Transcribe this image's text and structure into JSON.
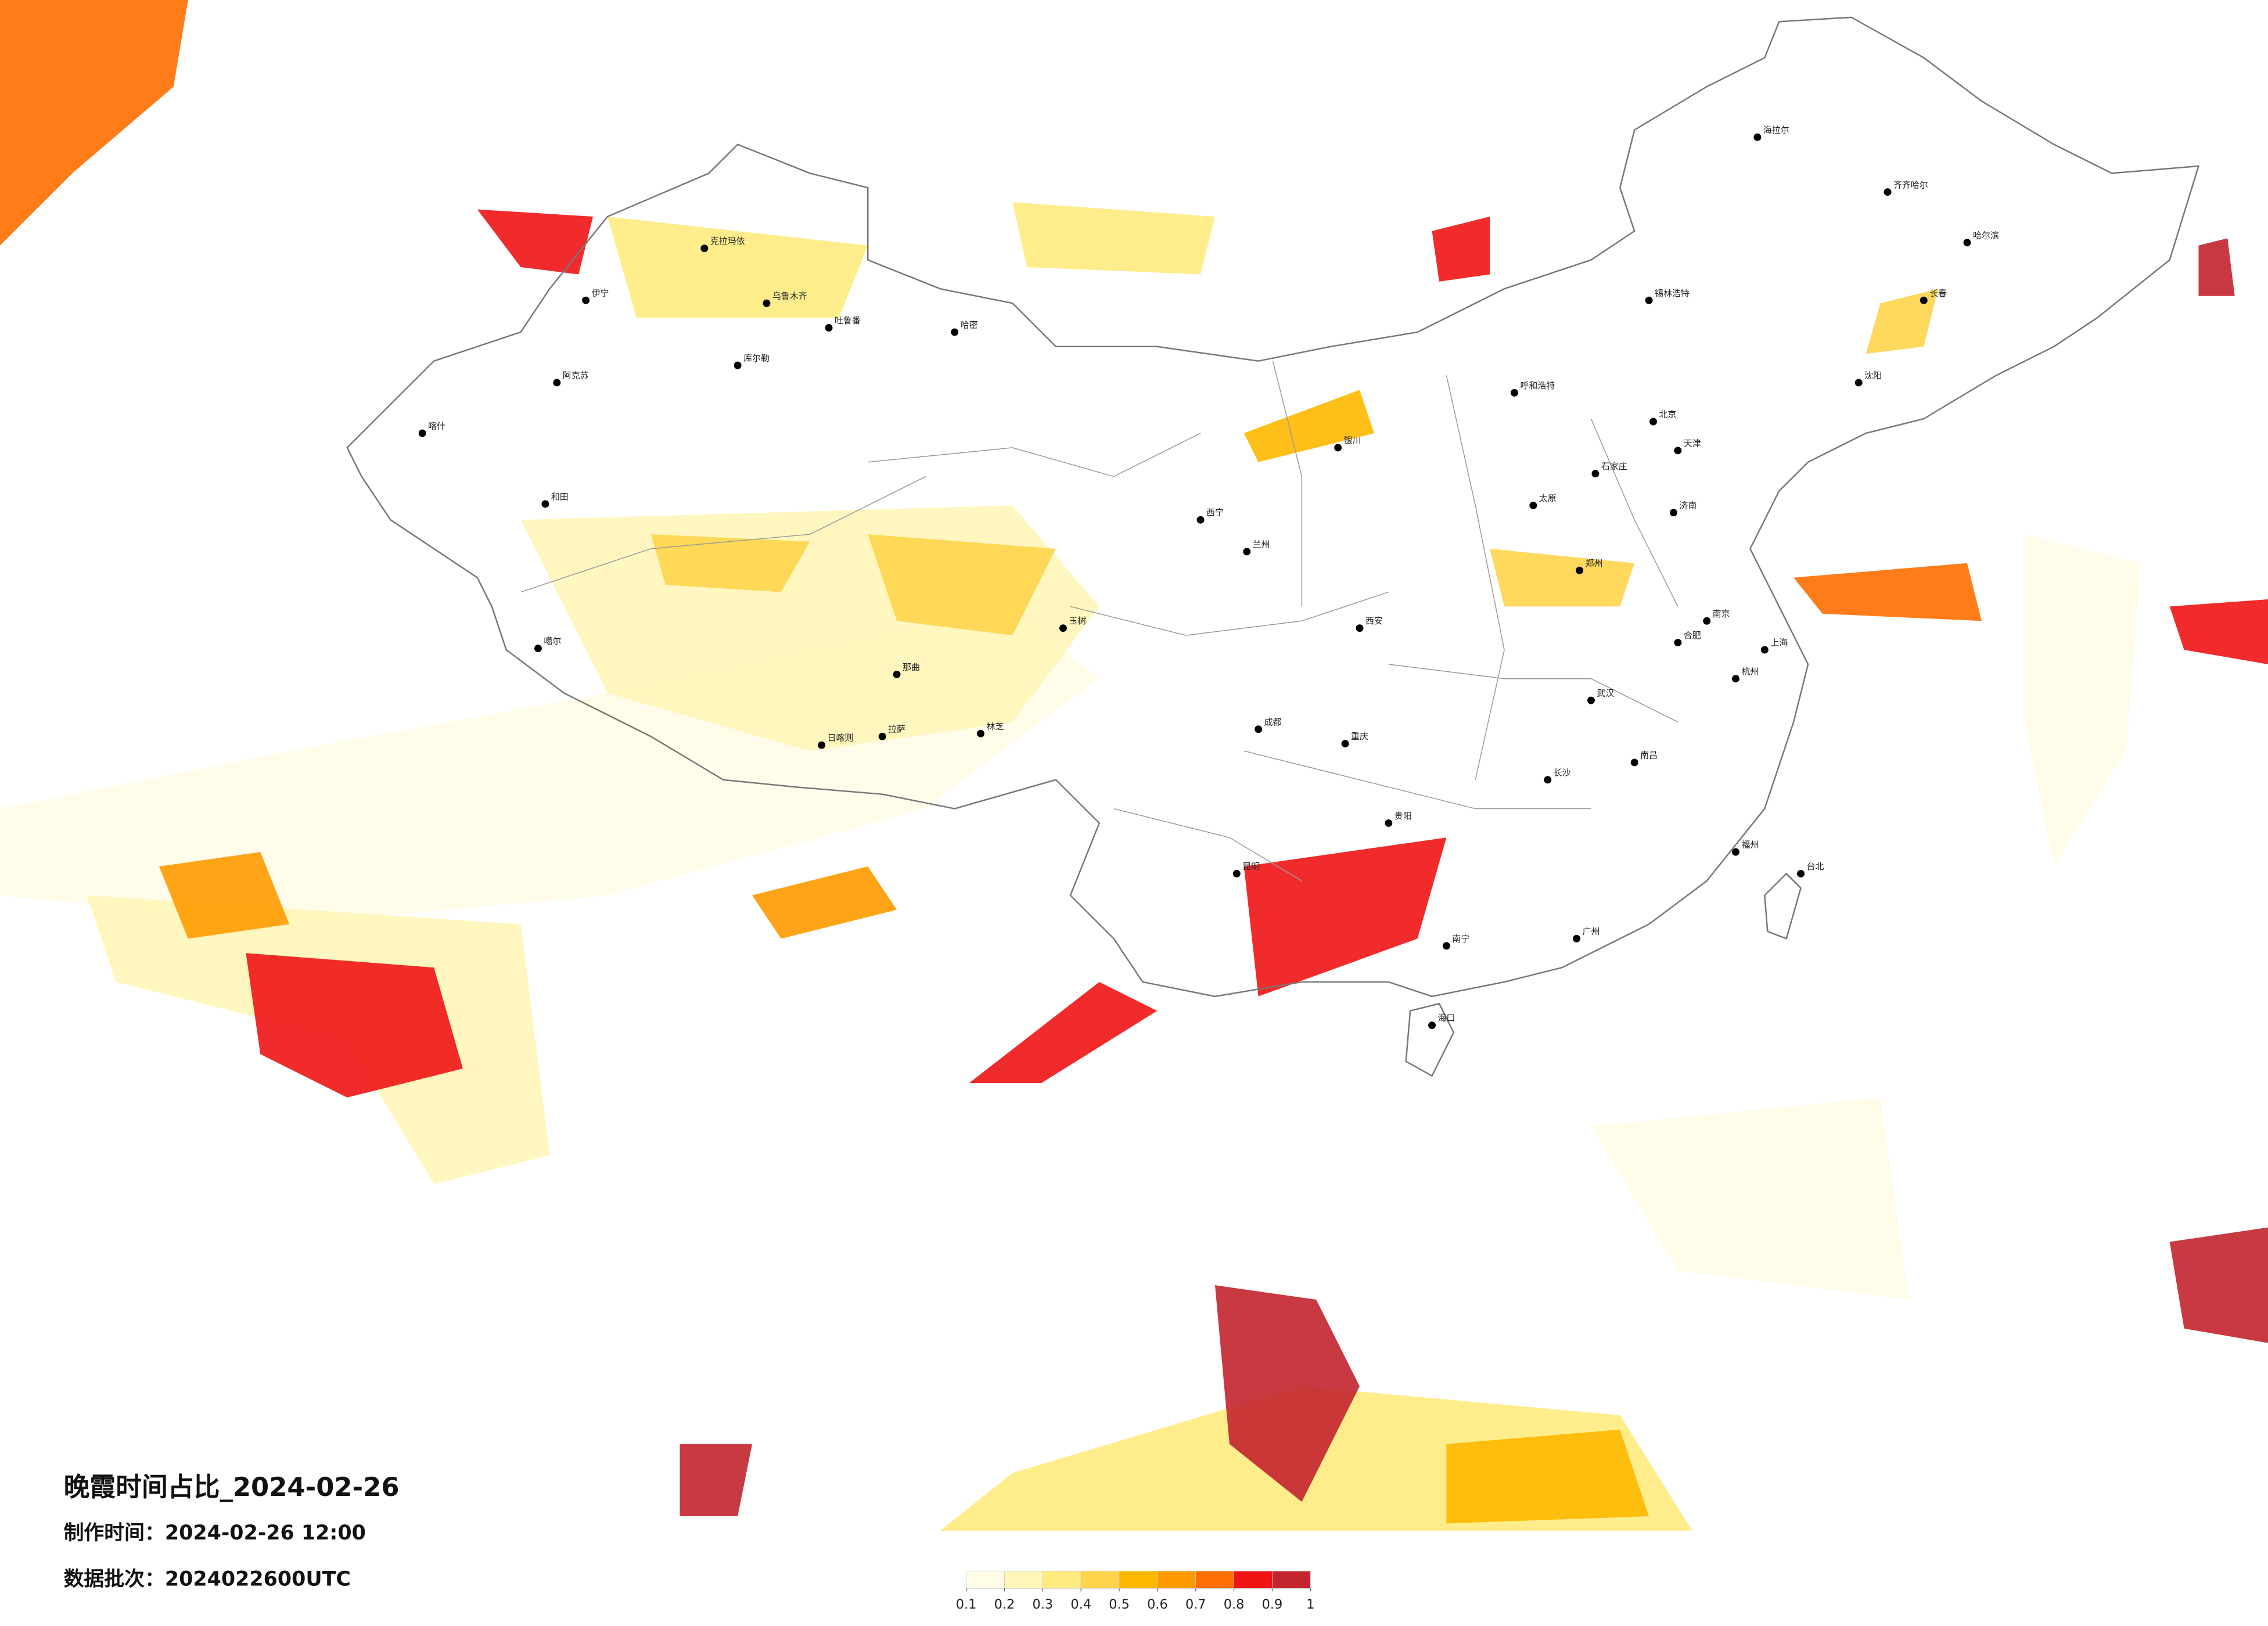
{
  "title": "晚霞时间占比_2024-02-26",
  "made_time": "制作时间：2024-02-26 12:00",
  "batch": "数据批次：2024022600UTC",
  "legend": {
    "lim": [
      0.1,
      1
    ],
    "ticks": [
      0.1,
      0.2,
      0.3,
      0.4,
      0.5,
      0.6,
      0.7,
      0.8,
      0.9,
      1
    ],
    "colors": [
      "#fffce8",
      "#fff6b8",
      "#ffeb80",
      "#ffd44c",
      "#ffb800",
      "#ff9a00",
      "#ff6e00",
      "#f01414",
      "#c3242e"
    ]
  },
  "cities": [
    "克拉玛依",
    "乌鲁木齐",
    "伊宁",
    "吐鲁番",
    "哈密",
    "阿克苏",
    "库尔勒",
    "喀什",
    "和田",
    "噶尔",
    "日喀则",
    "拉萨",
    "林芝",
    "那曲",
    "玉树",
    "西宁",
    "兰州",
    "银川",
    "呼和浩特",
    "北京",
    "天津",
    "石家庄",
    "太原",
    "西安",
    "郑州",
    "济南",
    "南京",
    "上海",
    "杭州",
    "合肥",
    "武汉",
    "长沙",
    "南昌",
    "福州",
    "广州",
    "南宁",
    "海口",
    "昆明",
    "贵阳",
    "成都",
    "重庆",
    "哈尔滨",
    "长春",
    "沈阳",
    "海拉尔",
    "齐齐哈尔",
    "台北",
    "锡林浩特"
  ]
}
